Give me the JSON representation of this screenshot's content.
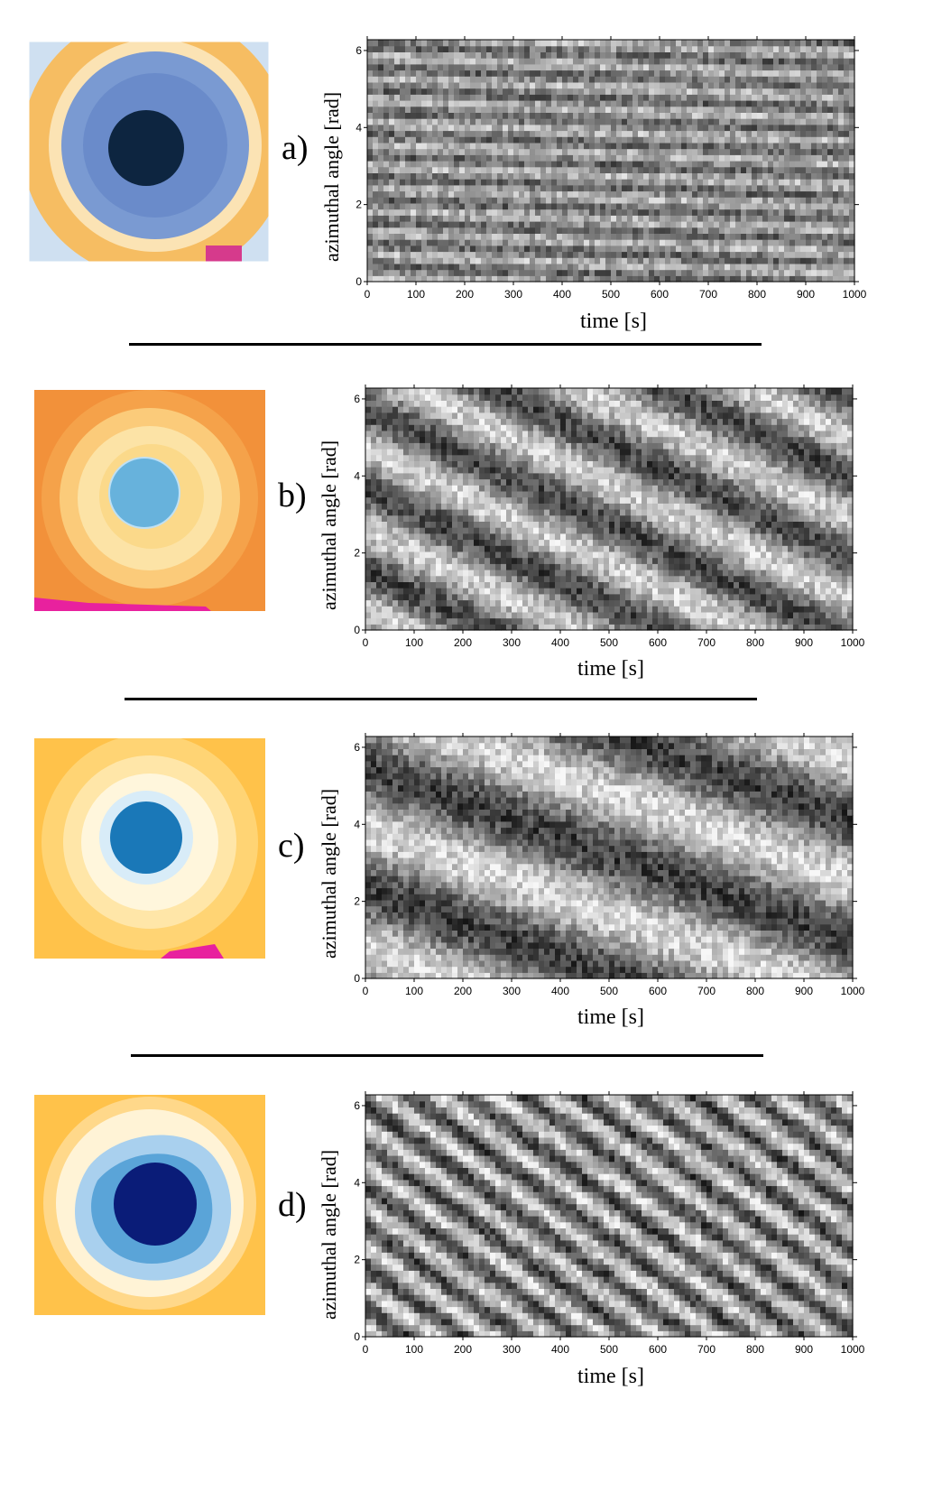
{
  "panels": [
    {
      "id": "a",
      "letter": "a)",
      "xlabel": "time [s]",
      "ylabel": "azimuthal angle [rad]",
      "palette": {
        "outer": "#f6bd62",
        "ring": "#fbe3b4",
        "inner": "#7a9ad2",
        "core": "#0d2540",
        "accent": "#d63a8c"
      },
      "stripe_slope": 0.0005,
      "stripe_freq": 11,
      "contrast": 0.35
    },
    {
      "id": "b",
      "letter": "b)",
      "xlabel": "time [s]",
      "ylabel": "azimuthal angle [rad]",
      "palette": {
        "outer": "#f2913a",
        "ring": "#fce3a6",
        "inner": "#fbd98a",
        "core": "#4aa3d4",
        "accent": "#e8219e"
      },
      "stripe_slope": 0.006,
      "stripe_freq": 3,
      "contrast": 0.55
    },
    {
      "id": "c",
      "letter": "c)",
      "xlabel": "time [s]",
      "ylabel": "azimuthal angle [rad]",
      "palette": {
        "outer": "#ffc24a",
        "ring": "#fff6dc",
        "inner": "#ffe6a8",
        "core": "#1a78b8",
        "accent": "#e8219e"
      },
      "stripe_slope": 0.0045,
      "stripe_freq": 2,
      "contrast": 0.6
    },
    {
      "id": "d",
      "letter": "d)",
      "xlabel": "time [s]",
      "ylabel": "azimuthal angle [rad]",
      "palette": {
        "outer": "#ffc24a",
        "ring": "#fff3d6",
        "inner": "#5aa4d8",
        "core": "#0a1c78",
        "accent": "#e8219e"
      },
      "stripe_slope": 0.009,
      "stripe_freq": 6,
      "contrast": 0.6
    }
  ],
  "chart_data": [
    {
      "type": "heatmap",
      "panel": "a",
      "xlabel": "time [s]",
      "ylabel": "azimuthal angle [rad]",
      "xlim": [
        0,
        1000
      ],
      "ylim": [
        0,
        6.28
      ],
      "xticks": [
        0,
        100,
        200,
        300,
        400,
        500,
        600,
        700,
        800,
        900,
        1000
      ],
      "yticks": [
        0,
        2,
        4,
        6
      ],
      "colormap": "grayscale"
    },
    {
      "type": "heatmap",
      "panel": "b",
      "xlabel": "time [s]",
      "ylabel": "azimuthal angle [rad]",
      "xlim": [
        0,
        1000
      ],
      "ylim": [
        0,
        6.28
      ],
      "xticks": [
        0,
        100,
        200,
        300,
        400,
        500,
        600,
        700,
        800,
        900,
        1000
      ],
      "yticks": [
        0,
        2,
        4,
        6
      ],
      "colormap": "grayscale"
    },
    {
      "type": "heatmap",
      "panel": "c",
      "xlabel": "time [s]",
      "ylabel": "azimuthal angle [rad]",
      "xlim": [
        0,
        1000
      ],
      "ylim": [
        0,
        6.28
      ],
      "xticks": [
        0,
        100,
        200,
        300,
        400,
        500,
        600,
        700,
        800,
        900,
        1000
      ],
      "yticks": [
        0,
        2,
        4,
        6
      ],
      "colormap": "grayscale"
    },
    {
      "type": "heatmap",
      "panel": "d",
      "xlabel": "time [s]",
      "ylabel": "azimuthal angle [rad]",
      "xlim": [
        0,
        1000
      ],
      "ylim": [
        0,
        6.28
      ],
      "xticks": [
        0,
        100,
        200,
        300,
        400,
        500,
        600,
        700,
        800,
        900,
        1000
      ],
      "yticks": [
        0,
        2,
        4,
        6
      ],
      "colormap": "grayscale"
    }
  ]
}
